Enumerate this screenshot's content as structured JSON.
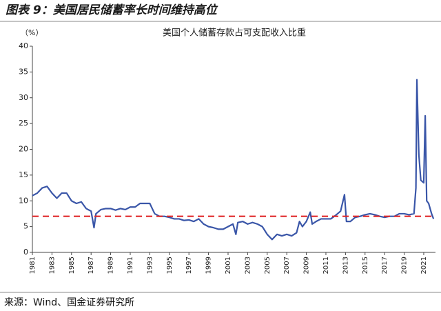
{
  "chart_data": {
    "type": "line",
    "title": "图表 9：美国居民储蓄率长时间维持高位",
    "chart_title": "美国个人储蓄存款占可支配收入比重",
    "y_label": "（%）",
    "source": "来源：Wind、国金证券研究所",
    "xlim": [
      1981,
      2022.2
    ],
    "xticks": [
      1981,
      1983,
      1985,
      1987,
      1989,
      1991,
      1993,
      1995,
      1997,
      1999,
      2001,
      2003,
      2005,
      2007,
      2009,
      2011,
      2013,
      2015,
      2017,
      2019,
      2021
    ],
    "ylim": [
      0,
      40
    ],
    "yticks": [
      0,
      5,
      10,
      15,
      20,
      25,
      30,
      35,
      40
    ],
    "reference_line": {
      "value": 7,
      "color": "#e0282a"
    },
    "series": [
      {
        "color": "#3a56a8",
        "x": [
          1981,
          1981.5,
          1982,
          1982.5,
          1983,
          1983.5,
          1984,
          1984.5,
          1985,
          1985.5,
          1986,
          1986.5,
          1987,
          1987.3,
          1987.5,
          1988,
          1988.5,
          1989,
          1989.5,
          1990,
          1990.5,
          1991,
          1991.5,
          1992,
          1992.5,
          1993,
          1993.5,
          1994,
          1994.5,
          1995,
          1995.5,
          1996,
          1996.5,
          1997,
          1997.5,
          1998,
          1998.5,
          1999,
          1999.5,
          2000,
          2000.5,
          2001,
          2001.5,
          2001.8,
          2002,
          2002.5,
          2003,
          2003.5,
          2004,
          2004.5,
          2005,
          2005.5,
          2006,
          2006.5,
          2007,
          2007.5,
          2008,
          2008.3,
          2008.6,
          2009,
          2009.4,
          2009.6,
          2010,
          2010.5,
          2011,
          2011.5,
          2012,
          2012.5,
          2012.9,
          2013.1,
          2013.5,
          2014,
          2014.5,
          2015,
          2015.5,
          2016,
          2016.5,
          2017,
          2017.5,
          2018,
          2018.5,
          2019,
          2019.5,
          2020,
          2020.2,
          2020.3,
          2020.5,
          2020.7,
          2021,
          2021.15,
          2021.3,
          2021.5,
          2021.8,
          2022
        ],
        "values": [
          11,
          11.5,
          12.5,
          12.8,
          11.5,
          10.5,
          11.5,
          11.5,
          10,
          9.5,
          9.8,
          8.5,
          8,
          4.8,
          7.5,
          8.3,
          8.5,
          8.5,
          8.2,
          8.5,
          8.3,
          8.8,
          8.8,
          9.5,
          9.5,
          9.5,
          7.5,
          7,
          7,
          6.8,
          6.5,
          6.5,
          6.2,
          6.3,
          6,
          6.5,
          5.5,
          5,
          4.8,
          4.5,
          4.5,
          5,
          5.5,
          3.5,
          5.8,
          6,
          5.5,
          5.8,
          5.5,
          5,
          3.5,
          2.5,
          3.5,
          3.2,
          3.5,
          3.2,
          3.8,
          6,
          5,
          6,
          7.8,
          5.5,
          6,
          6.5,
          6.5,
          6.5,
          7.2,
          8,
          11.2,
          6,
          6,
          6.8,
          7,
          7.3,
          7.5,
          7.3,
          7,
          6.8,
          7,
          7,
          7.5,
          7.5,
          7.3,
          7.5,
          12.5,
          33.5,
          19,
          14,
          13.5,
          26.5,
          10,
          9.5,
          7.5,
          6.5
        ]
      }
    ]
  }
}
